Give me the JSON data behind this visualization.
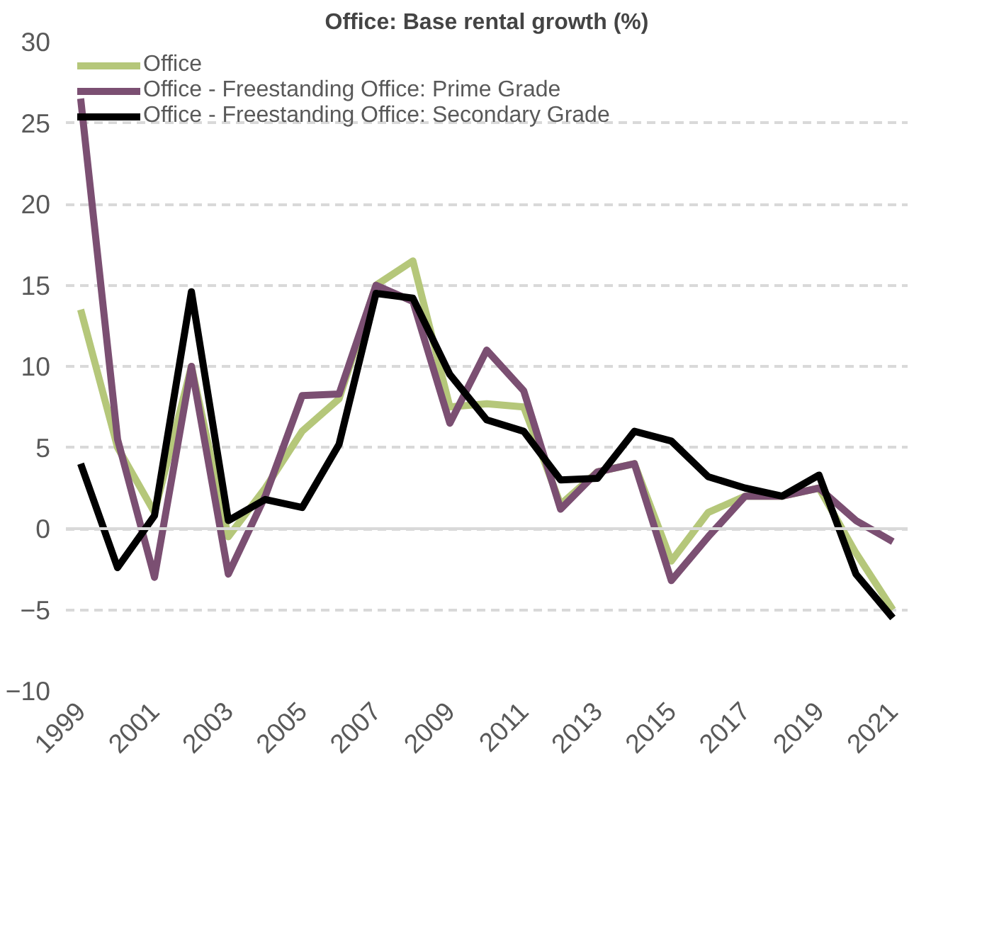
{
  "chart_data": {
    "type": "line",
    "title": "Office: Base rental growth (%)",
    "x": [
      1999,
      2000,
      2001,
      2002,
      2003,
      2004,
      2005,
      2006,
      2007,
      2008,
      2009,
      2010,
      2011,
      2012,
      2013,
      2014,
      2015,
      2016,
      2017,
      2018,
      2019,
      2020,
      2021
    ],
    "series": [
      {
        "name": "Office",
        "color": "#b5c77a",
        "values": [
          13.5,
          5,
          1,
          10,
          -0.5,
          2.5,
          6,
          8,
          15,
          16.5,
          7.5,
          7.7,
          7.5,
          1.5,
          3.5,
          4,
          -2,
          1,
          2,
          2,
          2.5,
          -1.5,
          -5
        ]
      },
      {
        "name": "Office - Freestanding Office: Prime Grade",
        "color": "#7b4f72",
        "values": [
          26.5,
          5.5,
          -3,
          10,
          -2.8,
          2,
          8.2,
          8.3,
          15,
          14,
          6.5,
          11,
          8.5,
          1.2,
          3.5,
          4,
          -3.2,
          -0.5,
          2,
          2,
          2.5,
          0.5,
          -0.8
        ]
      },
      {
        "name": "Office - Freestanding Office: Secondary Grade",
        "color": "#000000",
        "values": [
          4,
          -2.4,
          0.8,
          14.6,
          0.5,
          1.8,
          1.3,
          5.2,
          14.5,
          14.2,
          9.5,
          6.7,
          6,
          3,
          3.1,
          6,
          5.4,
          3.2,
          2.5,
          2,
          3.3,
          -2.8,
          -5.5
        ]
      }
    ],
    "xlim": [
      1998.6,
      2021.4
    ],
    "xticks": [
      1999,
      2001,
      2003,
      2005,
      2007,
      2009,
      2011,
      2013,
      2015,
      2017,
      2019,
      2021
    ],
    "ylim": [
      -10,
      30
    ],
    "yticks": [
      -10,
      -5,
      0,
      5,
      10,
      15,
      20,
      25,
      30
    ],
    "grid": "y",
    "legend": "top left",
    "marker": "none",
    "line_style": "solid"
  }
}
